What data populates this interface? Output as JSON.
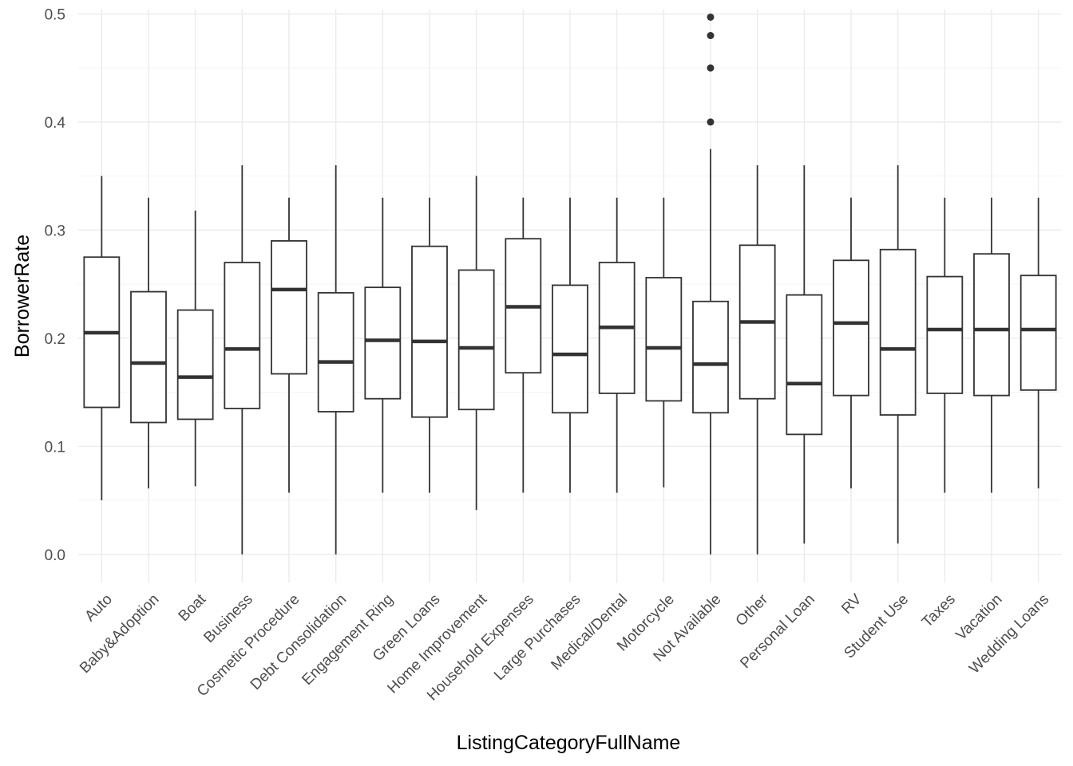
{
  "chart_data": {
    "type": "box",
    "xlabel": "ListingCategoryFullName",
    "ylabel": "BorrowerRate",
    "ylim": [
      -0.026,
      0.504
    ],
    "y_ticks": [
      0.0,
      0.1,
      0.2,
      0.3,
      0.4,
      0.5
    ],
    "y_tick_labels": [
      "0.0",
      "0.1",
      "0.2",
      "0.3",
      "0.4",
      "0.5"
    ],
    "grid": true,
    "colors": {
      "box_stroke": "#333333",
      "grid": "#ebebeb",
      "tick_text": "#4d4d4d"
    },
    "categories": [
      "Auto",
      "Baby&Adoption",
      "Boat",
      "Business",
      "Cosmetic Procedure",
      "Debt Consolidation",
      "Engagement Ring",
      "Green Loans",
      "Home Improvement",
      "Household Expenses",
      "Large Purchases",
      "Medical/Dental",
      "Motorcycle",
      "Not Available",
      "Other",
      "Personal Loan",
      "RV",
      "Student Use",
      "Taxes",
      "Vacation",
      "Wedding Loans"
    ],
    "boxes": [
      {
        "min": 0.05,
        "q1": 0.136,
        "median": 0.205,
        "q3": 0.275,
        "max": 0.35,
        "outliers": []
      },
      {
        "min": 0.061,
        "q1": 0.122,
        "median": 0.177,
        "q3": 0.243,
        "max": 0.33,
        "outliers": []
      },
      {
        "min": 0.063,
        "q1": 0.125,
        "median": 0.164,
        "q3": 0.226,
        "max": 0.318,
        "outliers": []
      },
      {
        "min": 0.0,
        "q1": 0.135,
        "median": 0.19,
        "q3": 0.27,
        "max": 0.36,
        "outliers": []
      },
      {
        "min": 0.057,
        "q1": 0.167,
        "median": 0.245,
        "q3": 0.29,
        "max": 0.33,
        "outliers": []
      },
      {
        "min": 0.0,
        "q1": 0.132,
        "median": 0.178,
        "q3": 0.242,
        "max": 0.36,
        "outliers": []
      },
      {
        "min": 0.057,
        "q1": 0.144,
        "median": 0.198,
        "q3": 0.247,
        "max": 0.33,
        "outliers": []
      },
      {
        "min": 0.057,
        "q1": 0.127,
        "median": 0.197,
        "q3": 0.285,
        "max": 0.33,
        "outliers": []
      },
      {
        "min": 0.041,
        "q1": 0.134,
        "median": 0.191,
        "q3": 0.263,
        "max": 0.35,
        "outliers": []
      },
      {
        "min": 0.057,
        "q1": 0.168,
        "median": 0.229,
        "q3": 0.292,
        "max": 0.33,
        "outliers": []
      },
      {
        "min": 0.057,
        "q1": 0.131,
        "median": 0.185,
        "q3": 0.249,
        "max": 0.33,
        "outliers": []
      },
      {
        "min": 0.057,
        "q1": 0.149,
        "median": 0.21,
        "q3": 0.27,
        "max": 0.33,
        "outliers": []
      },
      {
        "min": 0.062,
        "q1": 0.142,
        "median": 0.191,
        "q3": 0.256,
        "max": 0.33,
        "outliers": []
      },
      {
        "min": 0.0,
        "q1": 0.131,
        "median": 0.176,
        "q3": 0.234,
        "max": 0.375,
        "outliers": [
          0.4,
          0.45,
          0.48,
          0.497
        ]
      },
      {
        "min": 0.0,
        "q1": 0.144,
        "median": 0.215,
        "q3": 0.286,
        "max": 0.36,
        "outliers": []
      },
      {
        "min": 0.01,
        "q1": 0.111,
        "median": 0.158,
        "q3": 0.24,
        "max": 0.36,
        "outliers": []
      },
      {
        "min": 0.061,
        "q1": 0.147,
        "median": 0.214,
        "q3": 0.272,
        "max": 0.33,
        "outliers": []
      },
      {
        "min": 0.01,
        "q1": 0.129,
        "median": 0.19,
        "q3": 0.282,
        "max": 0.36,
        "outliers": []
      },
      {
        "min": 0.057,
        "q1": 0.149,
        "median": 0.208,
        "q3": 0.257,
        "max": 0.33,
        "outliers": []
      },
      {
        "min": 0.057,
        "q1": 0.147,
        "median": 0.208,
        "q3": 0.278,
        "max": 0.33,
        "outliers": []
      },
      {
        "min": 0.061,
        "q1": 0.152,
        "median": 0.208,
        "q3": 0.258,
        "max": 0.33,
        "outliers": []
      }
    ]
  }
}
